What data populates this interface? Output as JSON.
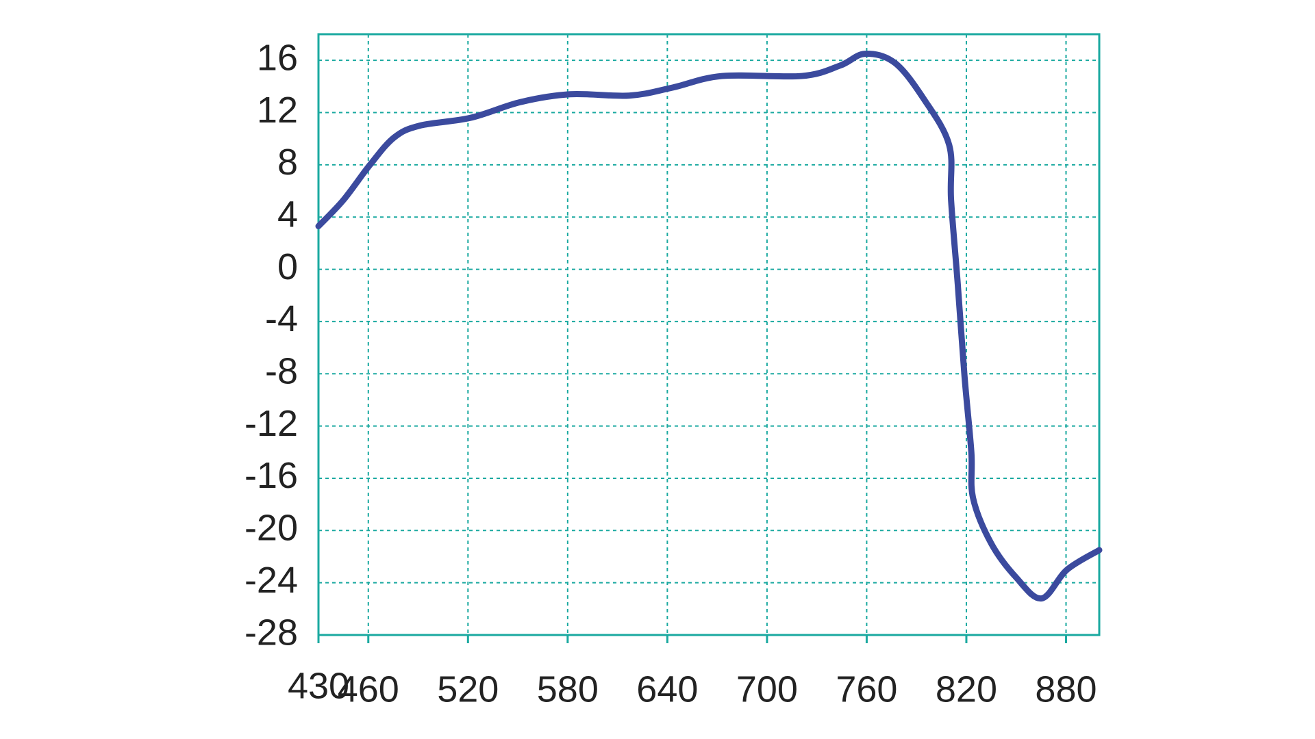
{
  "chart_data": {
    "type": "line",
    "x": [
      430,
      445,
      461,
      475.6,
      491,
      521.6,
      551.5,
      581.4,
      617,
      642.7,
      673,
      721,
      744,
      759,
      777,
      794.6,
      809.7,
      810.8,
      814.8,
      818.9,
      823,
      824,
      835,
      850,
      865.3,
      880.6,
      900
    ],
    "values": [
      3.3,
      5.3,
      8.0,
      10.1,
      11.0,
      11.6,
      12.8,
      13.4,
      13.3,
      13.9,
      14.8,
      14.8,
      15.6,
      16.5,
      15.8,
      13.0,
      9.5,
      5.3,
      -1.1,
      -8.2,
      -14.0,
      -17.5,
      -21.0,
      -23.6,
      -25.2,
      -23.0,
      -21.5
    ],
    "color": "#3b4a9e",
    "xlim": [
      430,
      900
    ],
    "xticks": [
      430,
      460,
      520,
      580,
      640,
      700,
      760,
      820,
      880
    ],
    "ylim": [
      -28,
      18
    ],
    "yticks": [
      -28,
      -24,
      -20,
      -16,
      -12,
      -8,
      -4,
      0,
      4,
      8,
      12,
      16
    ],
    "grid": true,
    "grid_color": "#1aa9a0"
  }
}
